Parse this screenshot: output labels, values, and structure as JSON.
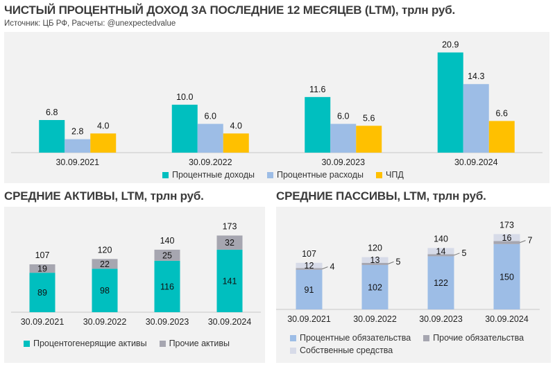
{
  "header": {
    "title": "ЧИСТЫЙ ПРОЦЕНТНЫЙ ДОХОД ЗА ПОСЛЕДНИЕ 12 МЕСЯЦЕВ (LTM), трлн руб.",
    "source": "Источник: ЦБ РФ, Расчеты: @unexpectedvalue"
  },
  "colors": {
    "teal": "#00bfbf",
    "lightblue": "#9dbde6",
    "yellow": "#ffc000",
    "gray": "#a6a6b0",
    "verylight": "#d7dbe8"
  },
  "chart_data": [
    {
      "type": "bar",
      "title": "ЧИСТЫЙ ПРОЦЕНТНЫЙ ДОХОД ЗА ПОСЛЕДНИЕ 12 МЕСЯЦЕВ (LTM), трлн руб.",
      "categories": [
        "30.09.2021",
        "30.09.2022",
        "30.09.2023",
        "30.09.2024"
      ],
      "series": [
        {
          "name": "Процентные доходы",
          "color": "#00bfbf",
          "values": [
            6.8,
            10.0,
            11.6,
            20.9
          ],
          "labels": [
            "6.8",
            "10.0",
            "11.6",
            "20.9"
          ]
        },
        {
          "name": "Процентные расходы",
          "color": "#9dbde6",
          "values": [
            2.8,
            6.0,
            6.0,
            14.3
          ],
          "labels": [
            "2.8",
            "6.0",
            "6.0",
            "14.3"
          ]
        },
        {
          "name": "ЧПД",
          "color": "#ffc000",
          "values": [
            4.0,
            4.0,
            5.6,
            6.6
          ],
          "labels": [
            "4.0",
            "4.0",
            "5.6",
            "6.6"
          ]
        }
      ],
      "ylim": [
        0,
        22
      ],
      "legend": "bottom"
    },
    {
      "type": "bar",
      "stacked": true,
      "title": "СРЕДНИЕ АКТИВЫ, LTM, трлн руб.",
      "categories": [
        "30.09.2021",
        "30.09.2022",
        "30.09.2023",
        "30.09.2024"
      ],
      "totals": [
        "107",
        "120",
        "140",
        "173"
      ],
      "series": [
        {
          "name": "Процентогенерящие активы",
          "color": "#00bfbf",
          "values": [
            89,
            98,
            116,
            141
          ]
        },
        {
          "name": "Прочие активы",
          "color": "#a6a6b0",
          "values": [
            19,
            22,
            25,
            32
          ]
        }
      ],
      "ylim": [
        0,
        180
      ],
      "legend": "bottom"
    },
    {
      "type": "bar",
      "stacked": true,
      "title": "СРЕДНИЕ ПАССИВЫ, LTM, трлн руб.",
      "categories": [
        "30.09.2021",
        "30.09.2022",
        "30.09.2023",
        "30.09.2024"
      ],
      "totals": [
        "107",
        "120",
        "140",
        "173"
      ],
      "series": [
        {
          "name": "Процентные обязательства",
          "color": "#9dbde6",
          "values": [
            91,
            102,
            122,
            150
          ]
        },
        {
          "name": "Прочие обязательства",
          "color": "#a6a6b0",
          "values": [
            4,
            5,
            5,
            7
          ]
        },
        {
          "name": "Собственные средства",
          "color": "#d7dbe8",
          "values": [
            12,
            13,
            14,
            16
          ]
        }
      ],
      "ylim": [
        0,
        180
      ],
      "legend": "bottom"
    }
  ]
}
